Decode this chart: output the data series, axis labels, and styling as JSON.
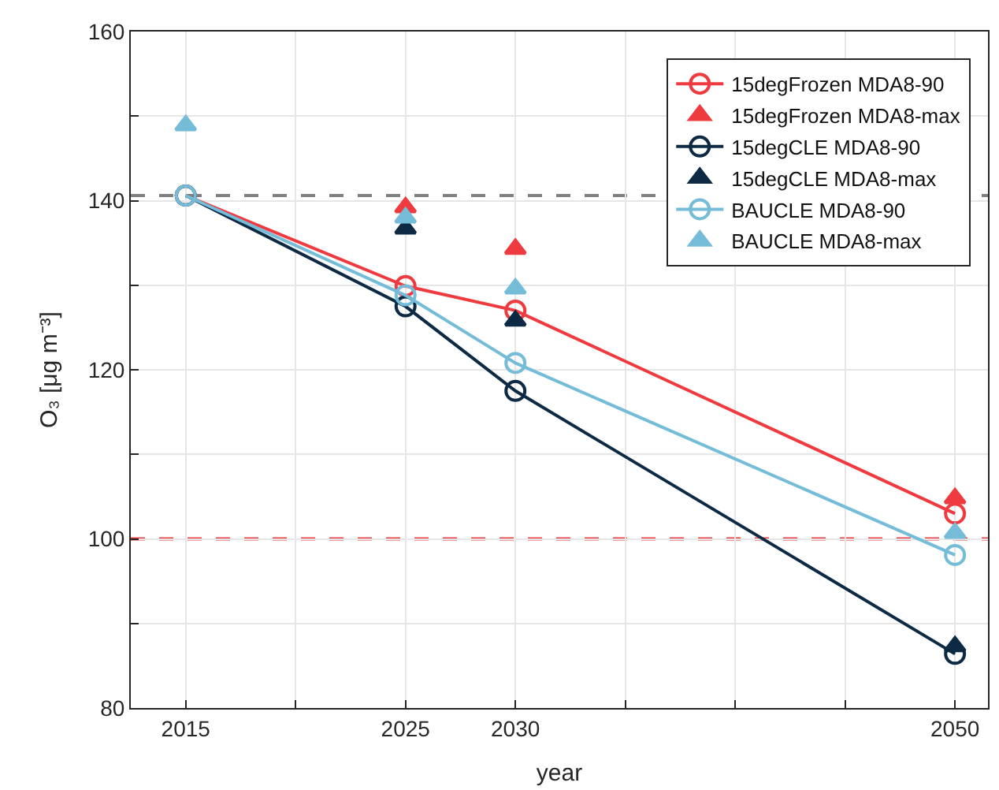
{
  "chart_data": {
    "type": "line",
    "x": [
      2015,
      2025,
      2030,
      2050
    ],
    "xlabel": "year",
    "ylabel": "O₃ [μg m⁻³]",
    "xlim": [
      2012.5,
      2051.5
    ],
    "xticks": [
      2015,
      {
        "value": 2020,
        "label": null
      },
      2025,
      2030,
      {
        "value": 2035,
        "label": null
      },
      {
        "value": 2040,
        "label": null
      },
      {
        "value": 2045,
        "label": null
      },
      2050
    ],
    "ylim": [
      80,
      160
    ],
    "yticks": [
      80,
      {
        "value": 90,
        "label": null
      },
      100,
      {
        "value": 110,
        "label": null
      },
      120,
      {
        "value": 130,
        "label": null
      },
      140,
      {
        "value": 150,
        "label": null
      },
      160
    ],
    "grid": true,
    "legend": "top right",
    "series": [
      {
        "name": "15degFrozen MDA8-90",
        "marker": "circle",
        "color": "#ef3b3f",
        "values": [
          140.6,
          129.9,
          127.0,
          103.0
        ]
      },
      {
        "name": "15degFrozen MDA8-max",
        "type": "scatter",
        "marker": "triangle",
        "color": "#ef3b3f",
        "values": [
          null,
          139.2,
          134.3,
          104.8
        ]
      },
      {
        "name": "15degCLE MDA8-90",
        "marker": "circle",
        "color": "#0d2a45",
        "values": [
          140.6,
          127.5,
          117.5,
          86.4
        ]
      },
      {
        "name": "15degCLE MDA8-max",
        "type": "scatter",
        "marker": "triangle",
        "color": "#0d2a45",
        "values": [
          null,
          136.7,
          125.8,
          87.3
        ]
      },
      {
        "name": "BAUCLE MDA8-90",
        "marker": "circle",
        "color": "#74bcd8",
        "values": [
          140.6,
          128.8,
          120.8,
          98.1
        ]
      },
      {
        "name": "BAUCLE MDA8-max",
        "type": "scatter",
        "marker": "triangle",
        "color": "#74bcd8",
        "values": [
          148.9,
          138.0,
          129.6,
          100.7
        ]
      }
    ],
    "ref_lines": [
      {
        "axis": "y",
        "value": 140.6,
        "label": null,
        "color": "#808080",
        "line_style": "dashed"
      },
      {
        "axis": "y",
        "value": 100,
        "label": null,
        "color": "#ef3b3f",
        "line_style": "dashed"
      }
    ]
  }
}
